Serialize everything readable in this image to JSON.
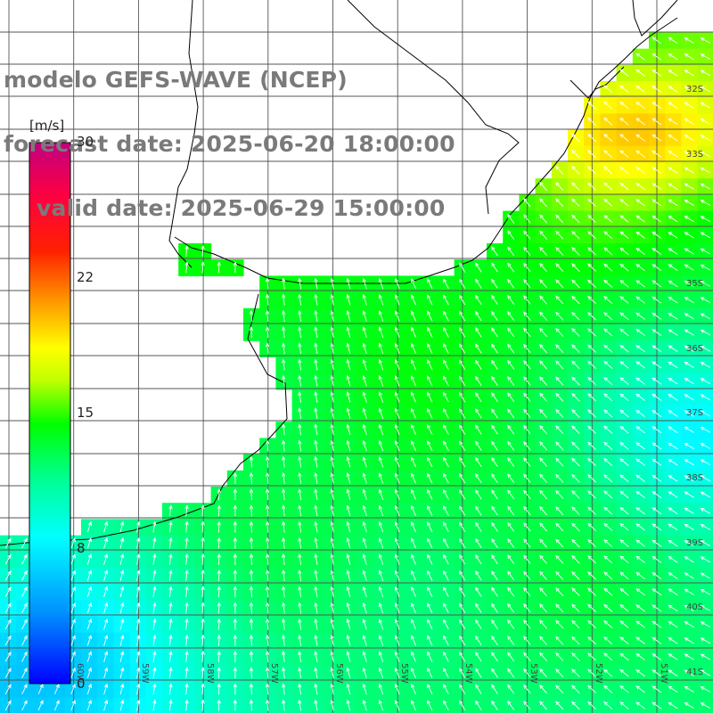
{
  "title": {
    "line1": "modelo GEFS-WAVE (NCEP)",
    "line2": "forecast date: 2025-06-20 18:00:00",
    "line3": "valid date: 2025-06-29 15:00:00"
  },
  "colorbar": {
    "unit": "[m/s]",
    "ticks": [
      "30",
      "22",
      "15",
      "8",
      "0"
    ],
    "tick_values": [
      30,
      22,
      15,
      8,
      0
    ],
    "range": [
      0,
      30
    ],
    "palette": [
      "#0000ff",
      "#0090ff",
      "#00ffff",
      "#00ff90",
      "#00ff00",
      "#c0ff00",
      "#ffff00",
      "#ff8000",
      "#ff0000",
      "#c00080"
    ]
  },
  "axes": {
    "lat_labels": [
      "32S",
      "33S",
      "35S",
      "36S",
      "37S",
      "38S",
      "39S",
      "40S",
      "41S"
    ],
    "lon_labels": [
      "60W",
      "59W",
      "58W",
      "57W",
      "56W",
      "55W",
      "54W",
      "53W",
      "52W",
      "51W"
    ]
  },
  "colors": {
    "land": "#ffffff",
    "grid": "#555555",
    "coast": "#000000",
    "arrow": "#ffffff",
    "title": "#7a7a7a"
  }
}
